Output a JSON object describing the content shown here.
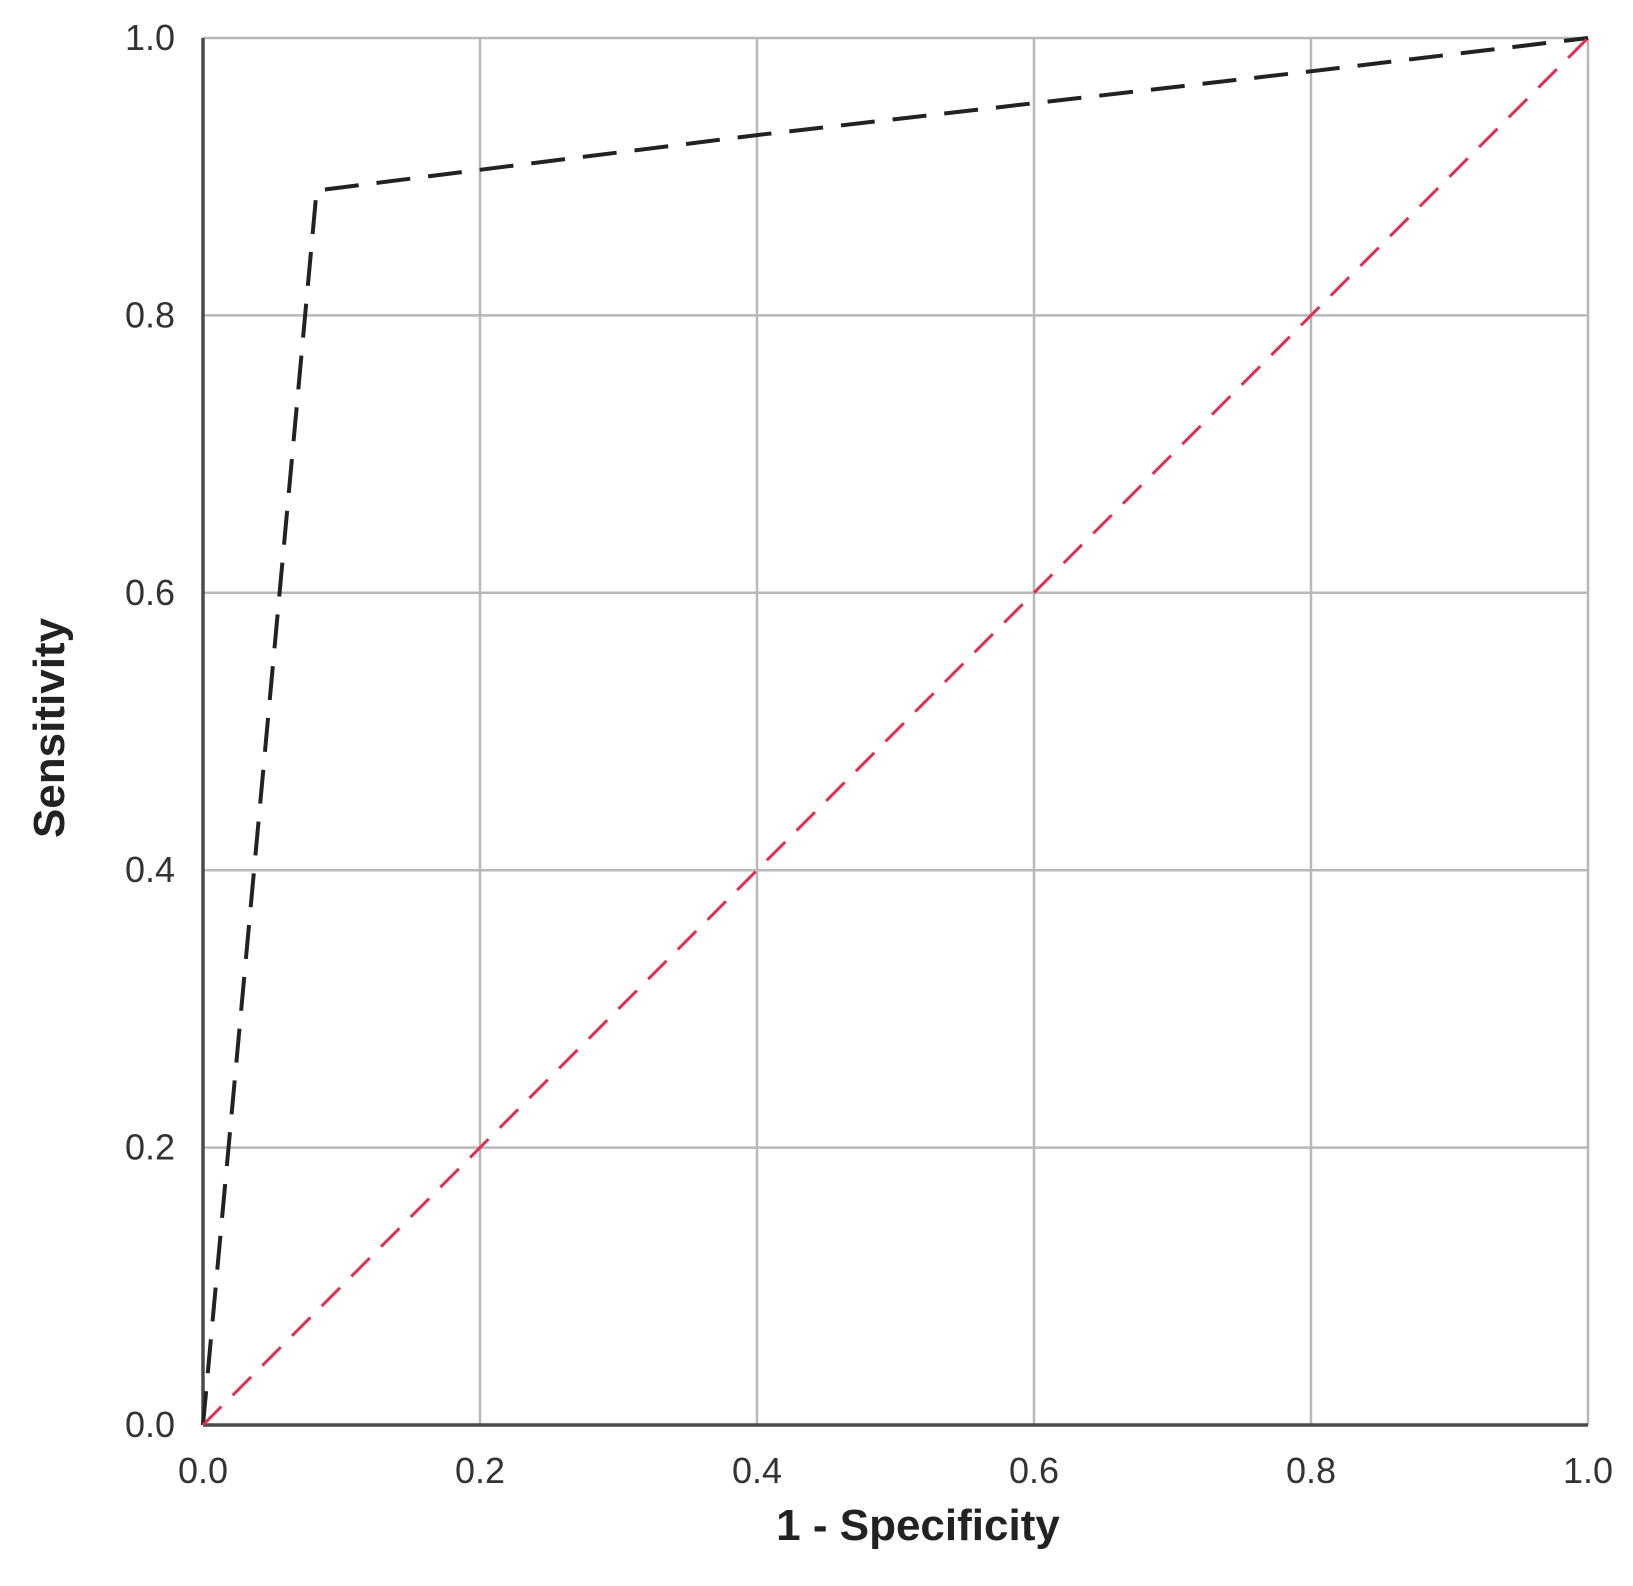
{
  "chart_data": {
    "type": "line",
    "title": "",
    "xlabel": "1 - Specificity",
    "ylabel": "Sensitivity",
    "xlim": [
      0.0,
      1.0
    ],
    "ylim": [
      0.0,
      1.0
    ],
    "grid": true,
    "x_ticks": [
      "0.0",
      "0.2",
      "0.4",
      "0.6",
      "0.8",
      "1.0"
    ],
    "y_ticks": [
      "0.0",
      "0.2",
      "0.4",
      "0.6",
      "0.8",
      "1.0"
    ],
    "series": [
      {
        "style": "dashed",
        "color": "#222222",
        "x": [
          0.0,
          0.082,
          0.2,
          0.4,
          0.6,
          0.8,
          1.0
        ],
        "y": [
          0.0,
          0.89,
          0.905,
          0.93,
          0.953,
          0.976,
          1.0
        ]
      },
      {
        "style": "dashed",
        "color": "#e03050",
        "x": [
          0.0,
          1.0
        ],
        "y": [
          0.0,
          1.0
        ]
      }
    ]
  }
}
